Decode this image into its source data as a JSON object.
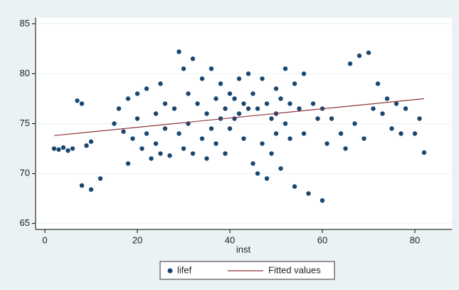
{
  "chart_data": {
    "type": "scatter",
    "x_label": "inst",
    "xlim": [
      -2,
      88
    ],
    "ylim": [
      64.4,
      85.6
    ],
    "xticks": [
      0,
      20,
      40,
      60,
      80
    ],
    "yticks": [
      65,
      70,
      75,
      80,
      85
    ],
    "grid": true,
    "legend": "bottom",
    "series": [
      {
        "name": "lifef",
        "type": "scatter",
        "color": "#1a476f",
        "x": [
          2,
          3,
          4,
          5,
          6,
          7,
          8,
          8,
          10,
          12,
          9,
          10,
          15,
          16,
          17,
          18,
          18,
          19,
          20,
          20,
          21,
          22,
          22,
          23,
          24,
          24,
          25,
          25,
          26,
          26,
          27,
          28,
          29,
          29,
          30,
          30,
          31,
          31,
          32,
          32,
          33,
          34,
          34,
          35,
          35,
          36,
          36,
          37,
          37,
          38,
          38,
          39,
          39,
          40,
          40,
          41,
          41,
          42,
          42,
          43,
          43,
          44,
          44,
          45,
          45,
          46,
          46,
          47,
          47,
          48,
          48,
          49,
          49,
          50,
          50,
          50,
          51,
          51,
          52,
          52,
          53,
          53,
          54,
          54,
          55,
          56,
          56,
          57,
          58,
          59,
          60,
          60,
          61,
          62,
          64,
          65,
          66,
          67,
          68,
          69,
          70,
          71,
          72,
          73,
          74,
          75,
          76,
          77,
          78,
          80,
          81,
          82
        ],
        "values": [
          72.5,
          72.4,
          72.6,
          72.3,
          72.5,
          77.3,
          77.0,
          68.8,
          68.4,
          69.5,
          72.8,
          73.2,
          75.0,
          76.5,
          74.2,
          77.5,
          71.0,
          73.5,
          78.0,
          75.5,
          72.5,
          78.5,
          74.0,
          71.5,
          76.0,
          73.0,
          79.0,
          72.0,
          77.0,
          74.5,
          71.8,
          76.5,
          82.2,
          74.0,
          80.5,
          72.5,
          78.0,
          75.0,
          81.5,
          72.0,
          77.0,
          79.5,
          73.5,
          76.0,
          71.5,
          80.5,
          74.5,
          77.5,
          73.0,
          79.0,
          75.5,
          76.5,
          72.0,
          78.0,
          74.5,
          77.5,
          75.5,
          79.5,
          76.0,
          77.0,
          73.5,
          80.0,
          76.5,
          78.0,
          71.0,
          76.5,
          70.0,
          79.5,
          73.0,
          77.0,
          69.5,
          75.5,
          72.0,
          78.5,
          76.0,
          74.0,
          77.5,
          70.5,
          80.5,
          75.0,
          77.0,
          73.5,
          79.0,
          68.7,
          76.5,
          80.0,
          74.0,
          68.0,
          77.0,
          75.5,
          67.3,
          76.5,
          73.0,
          75.5,
          74.0,
          72.5,
          81.0,
          75.0,
          81.8,
          73.5,
          82.1,
          76.5,
          79.0,
          76.0,
          77.5,
          74.5,
          77.0,
          74.0,
          76.5,
          74.0,
          75.5,
          72.1
        ]
      },
      {
        "name": "Fitted values",
        "type": "line",
        "color": "#90353b",
        "x": [
          2,
          82
        ],
        "values": [
          73.8,
          77.5
        ]
      }
    ]
  }
}
